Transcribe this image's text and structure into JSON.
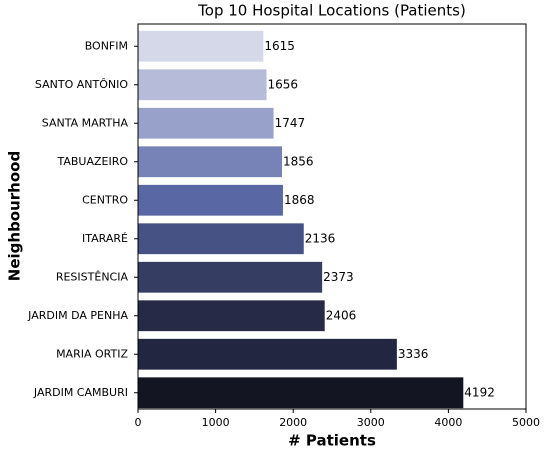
{
  "chart_data": {
    "type": "bar",
    "orientation": "horizontal",
    "title": "Top 10 Hospital Locations (Patients)",
    "x_label": "# Patients",
    "y_label": "Neighbourhood",
    "categories": [
      "BONFIM",
      "SANTO ANTÔNIO",
      "SANTA MARTHA",
      "TABUAZEIRO",
      "CENTRO",
      "ITARARÉ",
      "RESISTÊNCIA",
      "JARDIM DA PENHA",
      "MARIA ORTIZ",
      "JARDIM CAMBURI"
    ],
    "values": [
      1615,
      1656,
      1747,
      1856,
      1868,
      2136,
      2373,
      2406,
      3336,
      4192
    ],
    "colors": [
      "#d5d8e8",
      "#b6bbd9",
      "#98a1ca",
      "#7782b6",
      "#5a67a5",
      "#465283",
      "#363d62",
      "#262a46",
      "#222640",
      "#131522"
    ],
    "xlim": [
      0,
      5000
    ],
    "xticks": [
      0,
      1000,
      2000,
      3000,
      4000,
      5000
    ]
  }
}
